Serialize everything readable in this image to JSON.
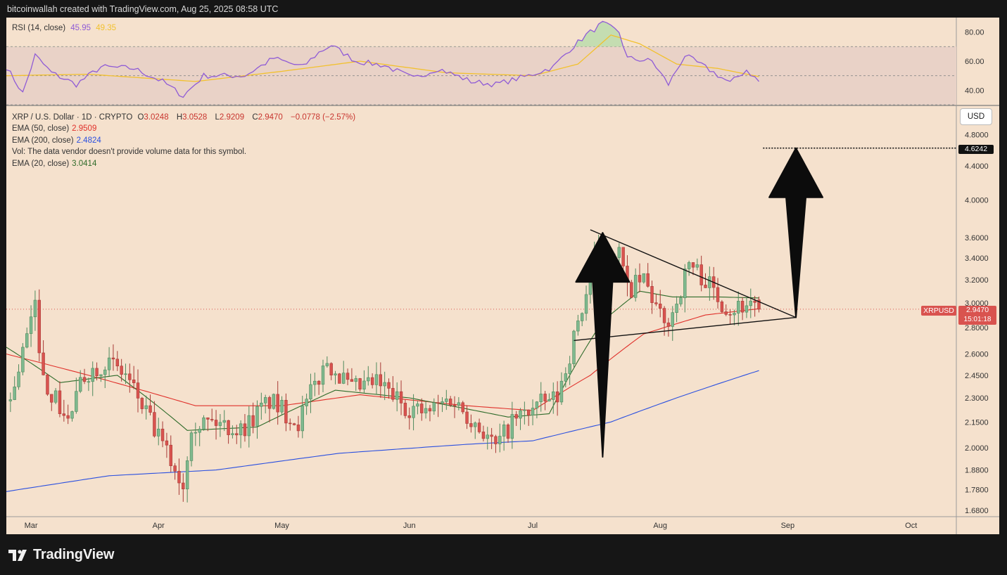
{
  "header": {
    "text": "bitcoinwallah created with TradingView.com, Aug 25, 2025 08:58 UTC"
  },
  "footer": {
    "logo_text": "TradingView"
  },
  "rsi_legend": {
    "label": "RSI (14, close)",
    "value": "45.95",
    "ma_value": "49.35"
  },
  "price_legend": {
    "symbol": "XRP / U.S. Dollar · 1D · CRYPTO",
    "open_label": "O",
    "open": "3.0248",
    "high_label": "H",
    "high": "3.0528",
    "low_label": "L",
    "low": "2.9209",
    "close_label": "C",
    "close": "2.9470",
    "change": "−0.0778 (−2.57%)",
    "ema50_label": "EMA (50, close)",
    "ema50_value": "2.9509",
    "ema200_label": "EMA (200, close)",
    "ema200_value": "2.4824",
    "vol_note": "Vol: The data vendor doesn't provide volume data for this symbol.",
    "ema20_label": "EMA (20, close)",
    "ema20_value": "3.0414"
  },
  "currency": "USD",
  "target_label": "4.6242",
  "price_tag": {
    "symbol": "XRPUSD",
    "price": "2.9470",
    "countdown": "15:01:18"
  },
  "colors": {
    "up": "#7fb98f",
    "down": "#d9534f",
    "ema20": "#2e6b2a",
    "ema50": "#e0302a",
    "ema200": "#2b50e0",
    "rsi": "#8f5bd6",
    "rsi_ma": "#f2c12e"
  },
  "chart_data": {
    "type": "candlestick",
    "symbol": "XRP / U.S. Dollar",
    "interval": "1D",
    "y_scale": "log",
    "ylim": [
      1.65,
      5.2
    ],
    "y_ticks": [
      4.8,
      4.4,
      4.0,
      3.6,
      3.4,
      3.2,
      3.0,
      2.8,
      2.6,
      2.45,
      2.3,
      2.15,
      2.0,
      1.88,
      1.78,
      1.68
    ],
    "y_tick_labels": [
      "4.8000",
      "4.4000",
      "4.0000",
      "3.6000",
      "3.4000",
      "3.2000",
      "3.0000",
      "2.8000",
      "2.6000",
      "2.4500",
      "2.3000",
      "2.1500",
      "2.0000",
      "1.8800",
      "1.7800",
      "1.6800"
    ],
    "x_range": [
      "2025-02-23",
      "2025-10-12"
    ],
    "x_ticks": [
      {
        "label": "Mar",
        "date": "2025-03-01"
      },
      {
        "label": "Apr",
        "date": "2025-04-01"
      },
      {
        "label": "May",
        "date": "2025-05-01"
      },
      {
        "label": "Jun",
        "date": "2025-06-01"
      },
      {
        "label": "Jul",
        "date": "2025-07-01"
      },
      {
        "label": "Aug",
        "date": "2025-08-01"
      },
      {
        "label": "Sep",
        "date": "2025-09-01"
      },
      {
        "label": "Oct",
        "date": "2025-10-01"
      }
    ],
    "close_anchors": [
      [
        "2025-02-24",
        2.28
      ],
      [
        "2025-03-02",
        2.95
      ],
      [
        "2025-03-04",
        2.42
      ],
      [
        "2025-03-10",
        2.15
      ],
      [
        "2025-03-14",
        2.45
      ],
      [
        "2025-03-19",
        2.55
      ],
      [
        "2025-03-24",
        2.45
      ],
      [
        "2025-03-31",
        2.1
      ],
      [
        "2025-04-07",
        1.8
      ],
      [
        "2025-04-09",
        2.15
      ],
      [
        "2025-04-15",
        2.15
      ],
      [
        "2025-04-21",
        2.1
      ],
      [
        "2025-04-28",
        2.28
      ],
      [
        "2025-05-05",
        2.15
      ],
      [
        "2025-05-09",
        2.38
      ],
      [
        "2025-05-12",
        2.55
      ],
      [
        "2025-05-18",
        2.35
      ],
      [
        "2025-05-24",
        2.4
      ],
      [
        "2025-05-31",
        2.25
      ],
      [
        "2025-06-05",
        2.2
      ],
      [
        "2025-06-11",
        2.3
      ],
      [
        "2025-06-17",
        2.15
      ],
      [
        "2025-06-22",
        2.0
      ],
      [
        "2025-06-26",
        2.15
      ],
      [
        "2025-07-02",
        2.25
      ],
      [
        "2025-07-07",
        2.3
      ],
      [
        "2025-07-10",
        2.6
      ],
      [
        "2025-07-13",
        2.95
      ],
      [
        "2025-07-16",
        3.35
      ],
      [
        "2025-07-18",
        3.5
      ],
      [
        "2025-07-22",
        3.45
      ],
      [
        "2025-07-24",
        3.1
      ],
      [
        "2025-07-28",
        3.2
      ],
      [
        "2025-08-02",
        2.8
      ],
      [
        "2025-08-05",
        3.0
      ],
      [
        "2025-08-08",
        3.35
      ],
      [
        "2025-08-12",
        3.2
      ],
      [
        "2025-08-15",
        3.05
      ],
      [
        "2025-08-18",
        2.95
      ],
      [
        "2025-08-21",
        2.98
      ],
      [
        "2025-08-24",
        3.02
      ],
      [
        "2025-08-25",
        2.947
      ]
    ],
    "last_candle": {
      "date": "2025-08-25",
      "open": 3.0248,
      "high": 3.0528,
      "low": 2.9209,
      "close": 2.947
    },
    "ema20_anchors": [
      [
        "2025-02-23",
        2.65
      ],
      [
        "2025-03-08",
        2.4
      ],
      [
        "2025-03-22",
        2.45
      ],
      [
        "2025-04-08",
        2.1
      ],
      [
        "2025-04-25",
        2.12
      ],
      [
        "2025-05-14",
        2.35
      ],
      [
        "2025-06-01",
        2.3
      ],
      [
        "2025-06-25",
        2.18
      ],
      [
        "2025-07-05",
        2.2
      ],
      [
        "2025-07-18",
        2.85
      ],
      [
        "2025-07-27",
        3.1
      ],
      [
        "2025-08-04",
        3.05
      ],
      [
        "2025-08-15",
        3.05
      ],
      [
        "2025-08-25",
        3.0414
      ]
    ],
    "ema50_anchors": [
      [
        "2025-02-23",
        2.6
      ],
      [
        "2025-03-15",
        2.45
      ],
      [
        "2025-04-10",
        2.25
      ],
      [
        "2025-05-01",
        2.25
      ],
      [
        "2025-05-20",
        2.32
      ],
      [
        "2025-06-15",
        2.25
      ],
      [
        "2025-07-01",
        2.22
      ],
      [
        "2025-07-15",
        2.45
      ],
      [
        "2025-07-28",
        2.75
      ],
      [
        "2025-08-12",
        2.9
      ],
      [
        "2025-08-25",
        2.9509
      ]
    ],
    "ema200_anchors": [
      [
        "2025-02-23",
        1.77
      ],
      [
        "2025-03-20",
        1.85
      ],
      [
        "2025-04-15",
        1.88
      ],
      [
        "2025-05-15",
        1.97
      ],
      [
        "2025-06-15",
        2.02
      ],
      [
        "2025-07-01",
        2.04
      ],
      [
        "2025-07-20",
        2.15
      ],
      [
        "2025-08-05",
        2.3
      ],
      [
        "2025-08-25",
        2.4824
      ]
    ],
    "annotations": [
      {
        "type": "trendline",
        "name": "upper",
        "points": [
          [
            "2025-07-15",
            3.68
          ],
          [
            "2025-09-03",
            2.88
          ]
        ]
      },
      {
        "type": "trendline",
        "name": "lower",
        "points": [
          [
            "2025-07-11",
            2.7
          ],
          [
            "2025-09-03",
            2.88
          ]
        ]
      },
      {
        "type": "horizontal_dotted",
        "value": 4.6242,
        "from": "2025-08-26"
      },
      {
        "type": "arrow",
        "direction": "up",
        "from": [
          "2025-07-18",
          1.95
        ],
        "to": [
          "2025-07-18",
          3.65
        ]
      },
      {
        "type": "arrow",
        "direction": "up",
        "from": [
          "2025-09-03",
          2.88
        ],
        "to": [
          "2025-09-03",
          4.6242
        ]
      }
    ],
    "rsi": {
      "ylim": [
        30,
        90
      ],
      "bands": [
        30,
        50,
        70
      ],
      "y_ticks": [
        80,
        60,
        40
      ],
      "y_tick_labels": [
        "80.00",
        "60.00",
        "40.00"
      ],
      "anchors": [
        [
          "2025-02-23",
          56
        ],
        [
          "2025-02-27",
          38
        ],
        [
          "2025-03-02",
          64
        ],
        [
          "2025-03-06",
          52
        ],
        [
          "2025-03-12",
          44
        ],
        [
          "2025-03-18",
          56
        ],
        [
          "2025-03-26",
          55
        ],
        [
          "2025-04-02",
          46
        ],
        [
          "2025-04-07",
          36
        ],
        [
          "2025-04-12",
          50
        ],
        [
          "2025-04-22",
          50
        ],
        [
          "2025-04-29",
          62
        ],
        [
          "2025-05-06",
          56
        ],
        [
          "2025-05-10",
          66
        ],
        [
          "2025-05-13",
          71
        ],
        [
          "2025-05-19",
          60
        ],
        [
          "2025-05-26",
          57
        ],
        [
          "2025-06-02",
          48
        ],
        [
          "2025-06-08",
          55
        ],
        [
          "2025-06-16",
          46
        ],
        [
          "2025-06-22",
          44
        ],
        [
          "2025-06-30",
          50
        ],
        [
          "2025-07-06",
          56
        ],
        [
          "2025-07-10",
          68
        ],
        [
          "2025-07-14",
          78
        ],
        [
          "2025-07-18",
          86
        ],
        [
          "2025-07-22",
          80
        ],
        [
          "2025-07-24",
          62
        ],
        [
          "2025-07-30",
          60
        ],
        [
          "2025-08-03",
          44
        ],
        [
          "2025-08-07",
          64
        ],
        [
          "2025-08-13",
          54
        ],
        [
          "2025-08-18",
          45
        ],
        [
          "2025-08-22",
          54
        ],
        [
          "2025-08-25",
          45.95
        ]
      ],
      "ma_anchors": [
        [
          "2025-02-23",
          50
        ],
        [
          "2025-03-15",
          51
        ],
        [
          "2025-04-10",
          46
        ],
        [
          "2025-05-01",
          53
        ],
        [
          "2025-05-20",
          60
        ],
        [
          "2025-06-10",
          52
        ],
        [
          "2025-07-01",
          50
        ],
        [
          "2025-07-12",
          58
        ],
        [
          "2025-07-20",
          78
        ],
        [
          "2025-07-27",
          72
        ],
        [
          "2025-08-05",
          58
        ],
        [
          "2025-08-15",
          55
        ],
        [
          "2025-08-25",
          49.35
        ]
      ]
    }
  }
}
